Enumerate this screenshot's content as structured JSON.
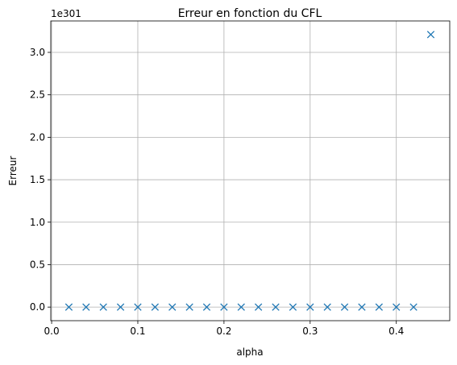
{
  "chart_data": {
    "type": "scatter",
    "title": "Erreur en fonction du CFL",
    "xlabel": "alpha",
    "ylabel": "Erreur",
    "y_offset_label": "1e301",
    "xlim": [
      -0.001,
      0.462
    ],
    "ylim": [
      -0.16,
      3.37
    ],
    "x_ticks": [
      0.0,
      0.1,
      0.2,
      0.3,
      0.4
    ],
    "x_tick_labels": [
      "0.0",
      "0.1",
      "0.2",
      "0.3",
      "0.4"
    ],
    "y_ticks": [
      0.0,
      0.5,
      1.0,
      1.5,
      2.0,
      2.5,
      3.0
    ],
    "y_tick_labels": [
      "0.0",
      "0.5",
      "1.0",
      "1.5",
      "2.0",
      "2.5",
      "3.0"
    ],
    "grid": true,
    "marker": "x",
    "color": "#1f77b4",
    "series": [
      {
        "x": [
          0.02,
          0.04,
          0.06,
          0.08,
          0.1,
          0.12,
          0.14,
          0.16,
          0.18,
          0.2,
          0.22,
          0.24,
          0.26,
          0.28,
          0.3,
          0.32,
          0.34,
          0.36,
          0.38,
          0.4,
          0.42,
          0.44
        ],
        "y": [
          0,
          0,
          0,
          0,
          0,
          0,
          0,
          0,
          0,
          0,
          0,
          0,
          0,
          0,
          0,
          0,
          0,
          0,
          0,
          0,
          0,
          3.21
        ]
      }
    ]
  }
}
